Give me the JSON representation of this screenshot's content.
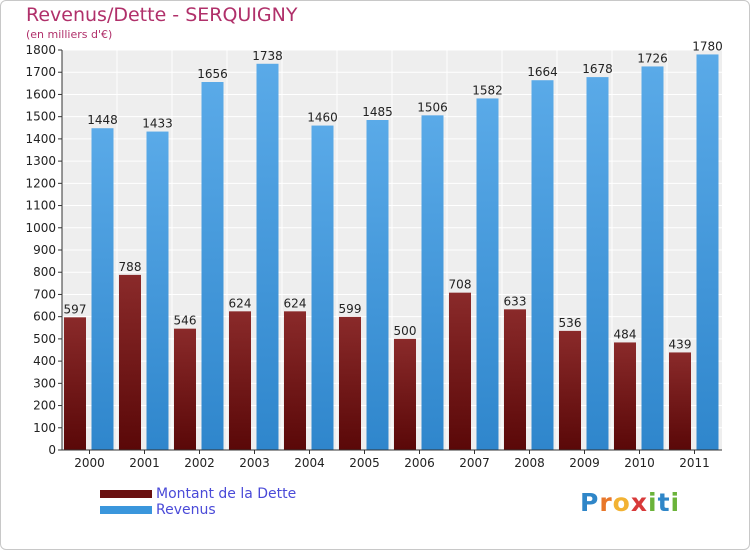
{
  "chart_data": {
    "type": "bar",
    "title": "Revenus/Dette - SERQUIGNY",
    "subtitle": "(en milliers d'€)",
    "categories": [
      "2000",
      "2001",
      "2002",
      "2003",
      "2004",
      "2005",
      "2006",
      "2007",
      "2008",
      "2009",
      "2010",
      "2011"
    ],
    "series": [
      {
        "name": "Montant de la Dette",
        "color": "#7a1a1a",
        "values": [
          597,
          788,
          546,
          624,
          624,
          599,
          500,
          708,
          633,
          536,
          484,
          439
        ]
      },
      {
        "name": "Revenus",
        "color": "#3a96dc",
        "values": [
          1448,
          1433,
          1656,
          1738,
          1460,
          1485,
          1506,
          1582,
          1664,
          1678,
          1726,
          1780
        ]
      }
    ],
    "ylim": [
      0,
      1800
    ],
    "yticks": [
      0,
      100,
      200,
      300,
      400,
      500,
      600,
      700,
      800,
      900,
      1000,
      1100,
      1200,
      1300,
      1400,
      1500,
      1600,
      1700,
      1800
    ],
    "grid": true,
    "legend_position": "bottom-left"
  },
  "brand": {
    "letters": [
      "P",
      "r",
      "o",
      "x",
      "i",
      "t",
      "i"
    ],
    "colors": [
      "#2f86c8",
      "#e8772a",
      "#f2b233",
      "#d83a3a",
      "#6bb33a",
      "#2f86c8",
      "#6bb33a"
    ]
  }
}
